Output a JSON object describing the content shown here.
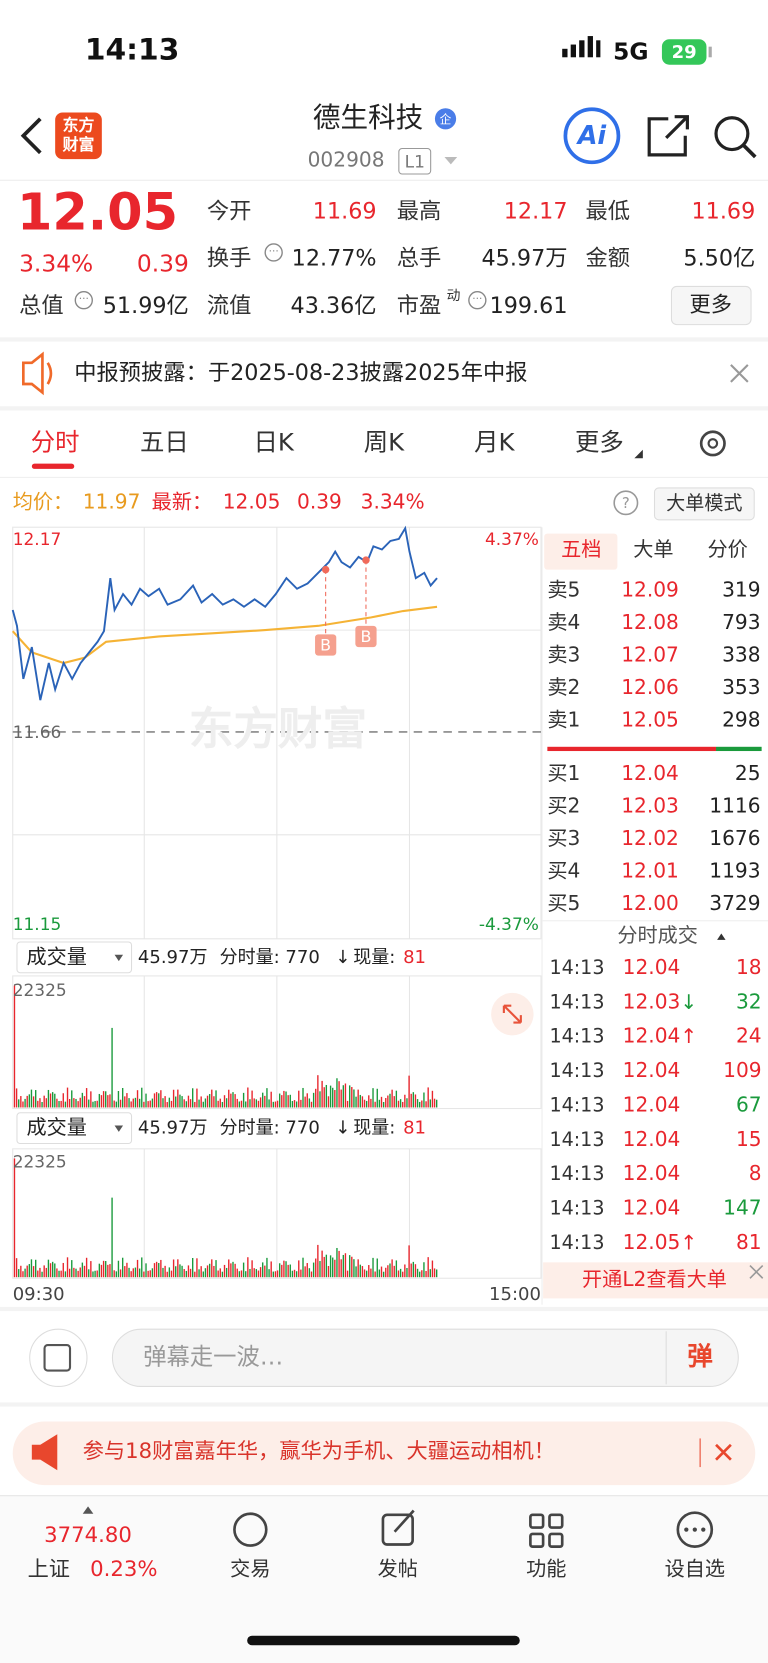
{
  "status": {
    "time": "14:13",
    "network": "5G",
    "battery": "29"
  },
  "header": {
    "logo": [
      "东方",
      "财富"
    ],
    "title": "德生科技",
    "badge": "企",
    "code": "002908",
    "level": "L1"
  },
  "quote": {
    "price": "12.05",
    "change_pct": "3.34%",
    "change": "0.39",
    "fields": [
      {
        "label": "今开",
        "value": "11.69"
      },
      {
        "label": "最高",
        "value": "12.17"
      },
      {
        "label": "最低",
        "value": "11.69"
      },
      {
        "label": "换手",
        "value": "12.77%"
      },
      {
        "label": "总手",
        "value": "45.97万"
      },
      {
        "label": "金额",
        "value": "5.50亿"
      },
      {
        "label": "总值",
        "value": "51.99亿"
      },
      {
        "label": "流值",
        "value": "43.36亿"
      },
      {
        "label": "市盈",
        "value": "199.61",
        "sup": "动"
      }
    ],
    "more": "更多"
  },
  "notice": "中报预披露：于2025-08-23披露2025年中报",
  "tabs": [
    "分时",
    "五日",
    "日K",
    "周K",
    "月K",
    "更多"
  ],
  "intraday": {
    "avg_label": "均价：",
    "avg": "11.97",
    "latest_label": "最新：",
    "latest": "12.05",
    "change": "0.39",
    "change_pct": "3.34%",
    "mode_button": "大单模式",
    "high": "12.17",
    "high_pct": "4.37%",
    "prev_close": "11.66",
    "low": "11.15",
    "low_pct": "-4.37%",
    "markers": [
      "B",
      "B"
    ],
    "watermark": "东方财富",
    "start_time": "09:30",
    "end_time": "15:00",
    "volume_panels": [
      {
        "label": "成交量",
        "total": "45.97万",
        "period": "分时量: 770",
        "arrow": "↓",
        "now_label": "现量:",
        "now": "81",
        "max": "22325"
      },
      {
        "label": "成交量",
        "total": "45.97万",
        "period": "分时量: 770",
        "arrow": "↓",
        "now_label": "现量:",
        "now": "81",
        "max": "22325"
      }
    ]
  },
  "order_book": {
    "tabs": [
      "五档",
      "大单",
      "分价"
    ],
    "asks": [
      {
        "label": "卖5",
        "price": "12.09",
        "volume": "319"
      },
      {
        "label": "卖4",
        "price": "12.08",
        "volume": "793"
      },
      {
        "label": "卖3",
        "price": "12.07",
        "volume": "338"
      },
      {
        "label": "卖2",
        "price": "12.06",
        "volume": "353"
      },
      {
        "label": "卖1",
        "price": "12.05",
        "volume": "298"
      }
    ],
    "bids": [
      {
        "label": "买1",
        "price": "12.04",
        "volume": "25"
      },
      {
        "label": "买2",
        "price": "12.03",
        "volume": "1116"
      },
      {
        "label": "买3",
        "price": "12.02",
        "volume": "1676"
      },
      {
        "label": "买4",
        "price": "12.01",
        "volume": "1193"
      },
      {
        "label": "买5",
        "price": "12.00",
        "volume": "3729"
      }
    ]
  },
  "trades": {
    "title": "分时成交",
    "rows": [
      {
        "time": "14:13",
        "price": "12.04",
        "volume": "18",
        "color": "#e8262d"
      },
      {
        "time": "14:13",
        "price": "12.03",
        "arrow": "↓",
        "arrow_color": "#1a9a3c",
        "volume": "32",
        "color": "#1a9a3c"
      },
      {
        "time": "14:13",
        "price": "12.04",
        "arrow": "↑",
        "arrow_color": "#e8262d",
        "volume": "24",
        "color": "#e8262d"
      },
      {
        "time": "14:13",
        "price": "12.04",
        "volume": "109",
        "color": "#e8262d"
      },
      {
        "time": "14:13",
        "price": "12.04",
        "volume": "67",
        "color": "#1a9a3c"
      },
      {
        "time": "14:13",
        "price": "12.04",
        "volume": "15",
        "color": "#e8262d"
      },
      {
        "time": "14:13",
        "price": "12.04",
        "volume": "8",
        "color": "#e8262d"
      },
      {
        "time": "14:13",
        "price": "12.04",
        "volume": "147",
        "color": "#1a9a3c"
      },
      {
        "time": "14:13",
        "price": "12.05",
        "arrow": "↑",
        "arrow_color": "#e8262d",
        "volume": "81",
        "color": "#e8262d"
      }
    ],
    "l2_banner": "开通L2查看大单"
  },
  "danmu": {
    "placeholder": "弹幕走一波…",
    "button": "弹"
  },
  "promo": "参与18财富嘉年华，赢华为手机、大疆运动相机！",
  "bottom_nav": {
    "index_value": "3774.80",
    "index_name": "上证",
    "index_change": "0.23%",
    "items": [
      "交易",
      "发帖",
      "功能",
      "设自选"
    ]
  }
}
